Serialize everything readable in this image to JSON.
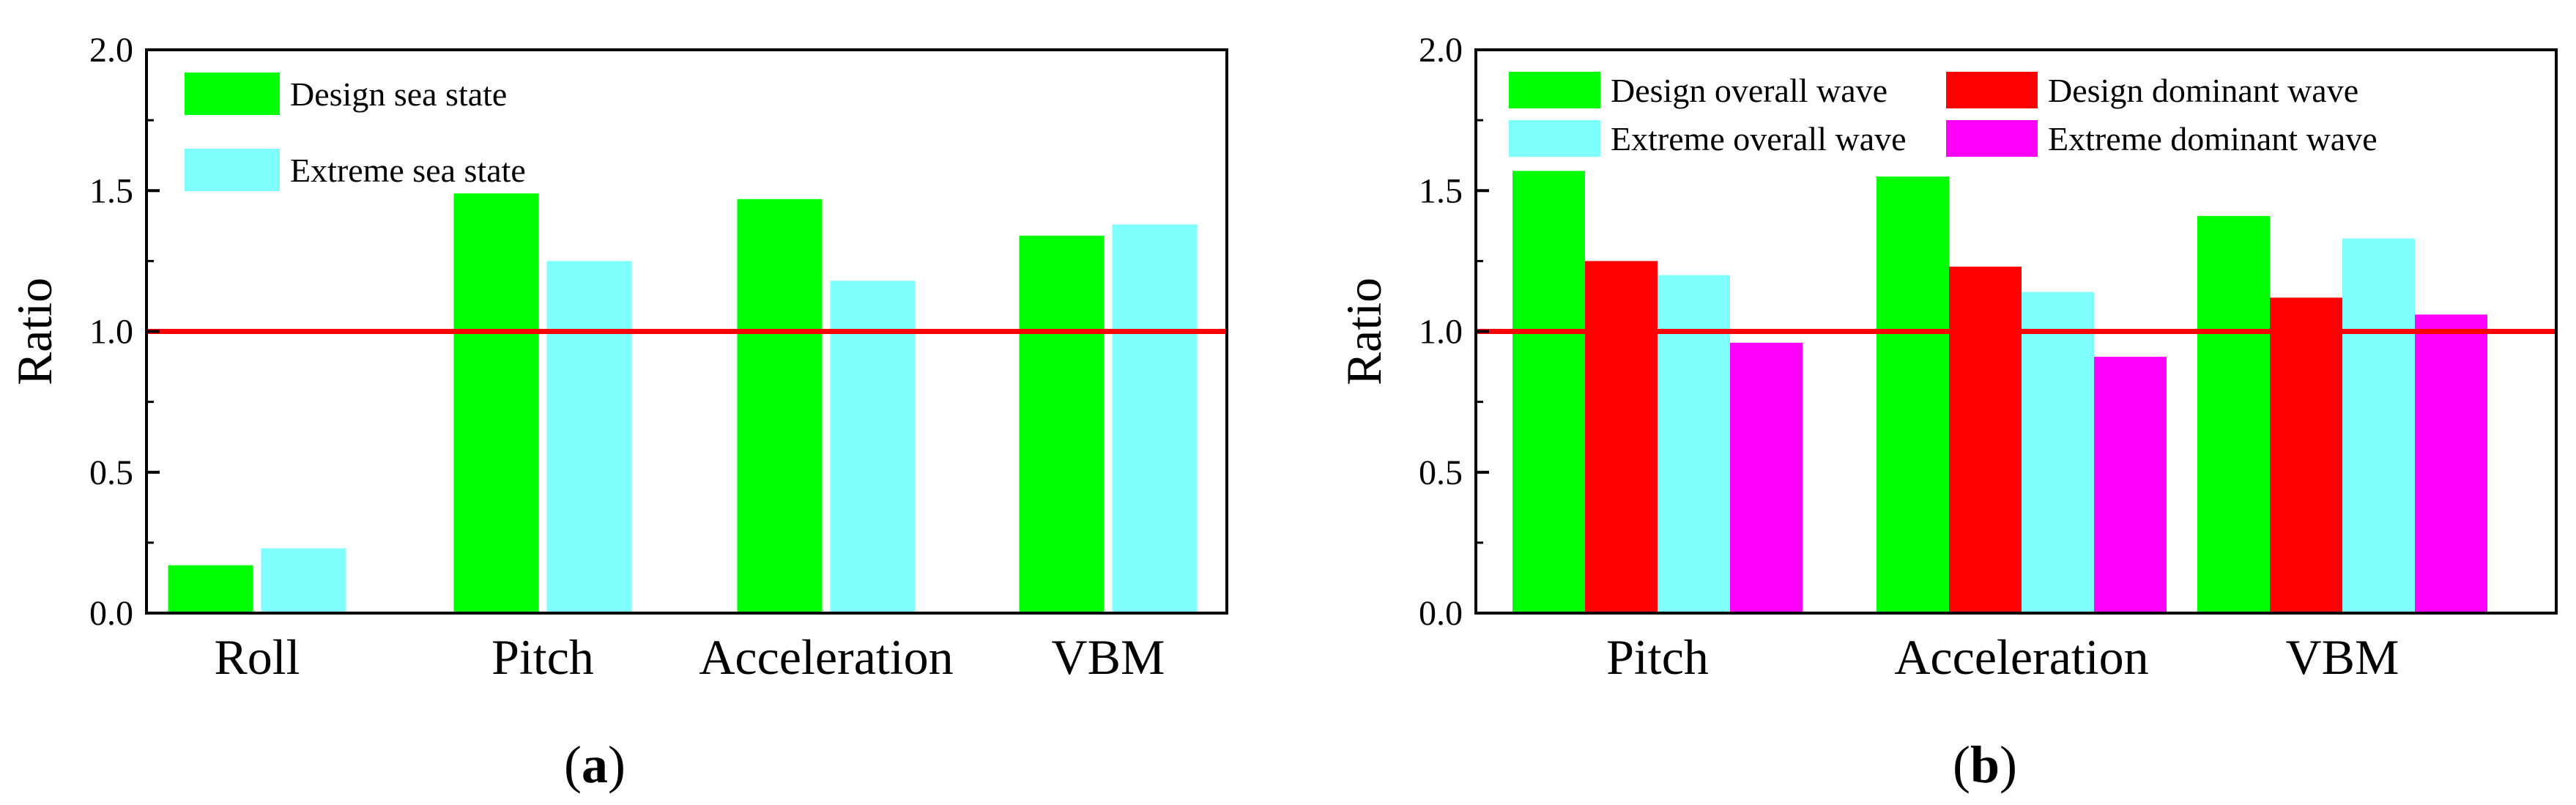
{
  "chart_data": [
    {
      "type": "bar",
      "panel_label": "a",
      "title": "",
      "xlabel": "",
      "ylabel": "Ratio",
      "ylim": [
        0,
        2.0
      ],
      "yticks": [
        "0.0",
        "0.5",
        "1.0",
        "1.5",
        "2.0"
      ],
      "categories": [
        "Roll",
        "Pitch",
        "Acceleration",
        "VBM"
      ],
      "reference_line": 1.0,
      "legend_position": "top-left",
      "series": [
        {
          "name": "Design sea state",
          "color": "#00ff00",
          "values": [
            0.17,
            1.49,
            1.47,
            1.34
          ]
        },
        {
          "name": "Extreme sea state",
          "color": "#80ffff",
          "values": [
            0.23,
            1.25,
            1.18,
            1.38
          ]
        }
      ]
    },
    {
      "type": "bar",
      "panel_label": "b",
      "title": "",
      "xlabel": "",
      "ylabel": "Ratio",
      "ylim": [
        0,
        2.0
      ],
      "yticks": [
        "0.0",
        "0.5",
        "1.0",
        "1.5",
        "2.0"
      ],
      "categories": [
        "Pitch",
        "Acceleration",
        "VBM"
      ],
      "reference_line": 1.0,
      "legend_position": "top",
      "series": [
        {
          "name": "Design overall wave",
          "color": "#00ff00",
          "values": [
            1.57,
            1.55,
            1.41
          ]
        },
        {
          "name": "Design dominant wave",
          "color": "#ff0000",
          "values": [
            1.25,
            1.23,
            1.12
          ]
        },
        {
          "name": "Extreme overall wave",
          "color": "#80ffff",
          "values": [
            1.2,
            1.14,
            1.33
          ]
        },
        {
          "name": "Extreme dominant wave",
          "color": "#ff00ff",
          "values": [
            0.96,
            0.91,
            1.06
          ]
        }
      ]
    }
  ],
  "reference_line_color": "#ff0000"
}
